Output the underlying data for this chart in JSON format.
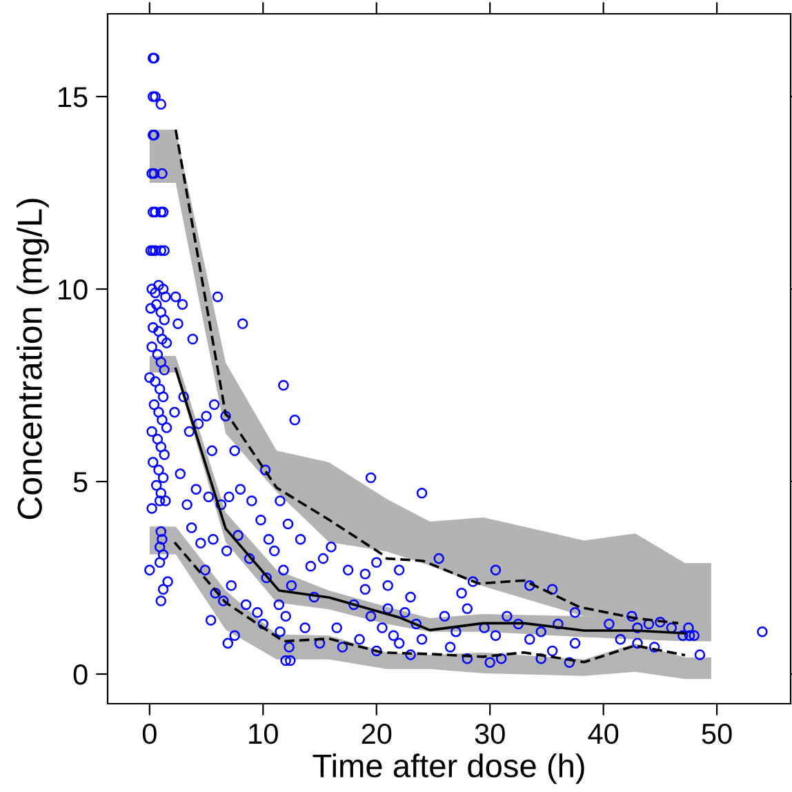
{
  "chart_data": {
    "type": "scatter",
    "xlabel": "Time after dose (h)",
    "ylabel": "Concentration (mg/L)",
    "xlim": [
      -3.7,
      56.5
    ],
    "ylim": [
      -0.77,
      17.15
    ],
    "xticks": [
      0,
      10,
      20,
      30,
      40,
      50
    ],
    "yticks": [
      0,
      5,
      10,
      15
    ],
    "series": [
      {
        "type": "area",
        "color": "#b3b3b3",
        "x": [
          0,
          2.3,
          6.7,
          11.2,
          15.8,
          20.9,
          24.7,
          29.4,
          38.3,
          42.8,
          47.2,
          49.5
        ],
        "values": [
          null,
          null,
          null,
          null,
          null,
          null,
          null,
          null,
          null,
          null,
          null,
          null
        ],
        "upper": [
          14.14,
          14.14,
          8.09,
          5.8,
          5.5,
          4.55,
          3.96,
          4.07,
          3.47,
          3.65,
          2.88,
          2.88
        ],
        "lower": [
          12.76,
          12.76,
          6.25,
          4.73,
          3.43,
          3.18,
          2.82,
          2.28,
          1.5,
          1.44,
          1.27,
          1.22
        ]
      },
      {
        "type": "area",
        "color": "#b2b2b2",
        "x": [
          0,
          2.3,
          6.7,
          11.2,
          15.8,
          20.9,
          24.7,
          29.4,
          38.3,
          42.8,
          47.2,
          49.5
        ],
        "values": [
          null,
          null,
          null,
          null,
          null,
          null,
          null,
          null,
          null,
          null,
          null,
          null
        ],
        "upper": [
          8.26,
          8.26,
          4.2,
          2.7,
          2.17,
          1.75,
          1.45,
          1.56,
          1.5,
          1.45,
          1.27,
          1.27
        ],
        "lower": [
          7.83,
          7.83,
          3.43,
          1.86,
          1.68,
          1.3,
          1.1,
          1.1,
          0.96,
          0.9,
          0.85,
          0.85
        ]
      },
      {
        "type": "area",
        "color": "#b4b4b4",
        "x": [
          0,
          2.3,
          6.7,
          11.2,
          15.8,
          20.9,
          24.7,
          29.4,
          38.3,
          42.8,
          47.2,
          49.5
        ],
        "values": [
          null,
          null,
          null,
          null,
          null,
          null,
          null,
          null,
          null,
          null,
          null,
          null
        ],
        "upper": [
          3.83,
          3.83,
          2.17,
          1.03,
          1.0,
          0.56,
          0.5,
          0.56,
          0.38,
          0.79,
          0.43,
          0.43
        ],
        "lower": [
          3.11,
          3.11,
          1.15,
          0.38,
          0.38,
          0.13,
          0.13,
          0.02,
          -0.05,
          0.06,
          -0.13,
          -0.13
        ]
      },
      {
        "color": "#0000ff",
        "marker": "circle",
        "x": [
          0.3,
          0.4,
          0.3,
          0.5,
          1.0,
          0.3,
          0.4,
          0.2,
          0.4,
          1.1,
          0.3,
          0.5,
          1.0,
          1.2,
          0.1,
          0.3,
          0.5,
          1.0,
          1.3,
          0.2,
          0.5,
          0.8,
          1.2,
          1.4,
          0.1,
          0.6,
          1.0,
          1.3,
          0.3,
          0.8,
          1.1,
          1.5,
          0.2,
          0.7,
          1.0,
          1.3,
          0.0,
          0.5,
          0.9,
          1.2,
          0.4,
          0.8,
          1.1,
          1.5,
          0.2,
          0.7,
          1.0,
          1.3,
          0.3,
          0.8,
          1.2,
          0.6,
          1.0,
          1.4,
          0.9,
          0.2,
          1.0,
          1.1,
          0.9,
          1.2,
          0.9,
          0.0,
          1.2,
          1.0,
          1.6,
          2.3,
          2.9,
          3.8,
          6.0,
          8.2,
          2.5,
          2.2,
          3.0,
          3.5,
          4.3,
          5.0,
          5.7,
          6.7,
          5.5,
          7.5,
          2.7,
          3.3,
          4.1,
          5.2,
          6.3,
          7.0,
          8.0,
          9.0,
          3.7,
          4.5,
          5.6,
          6.8,
          7.8,
          8.8,
          9.8,
          10.5,
          4.9,
          5.8,
          6.5,
          7.2,
          8.5,
          9.5,
          10.3,
          5.4,
          7.5,
          6.9,
          10.0,
          10.2,
          11.8,
          12.8,
          11.5,
          12.2,
          13.3,
          11.0,
          11.8,
          12.5,
          14.2,
          15.3,
          11.4,
          12.0,
          11.5,
          12.3,
          12.0,
          12.4,
          13.7,
          14.5,
          16.0,
          16.5,
          15.0,
          19.5,
          24.0,
          17.5,
          19.0,
          20.0,
          21.0,
          22.0,
          23.0,
          18.0,
          19.5,
          20.5,
          21.5,
          22.5,
          23.5,
          18.5,
          20.0,
          22.0,
          23.0,
          24.0,
          17.0,
          21.0,
          19.0,
          25.5,
          27.5,
          28.5,
          30.5,
          33.5,
          35.5,
          37.5,
          26.0,
          27.0,
          28.0,
          29.5,
          30.5,
          31.5,
          32.5,
          33.5,
          34.5,
          35.5,
          36.0,
          26.5,
          28.0,
          30.0,
          31.0,
          34.5,
          37.0,
          37.5,
          40.5,
          42.5,
          43.0,
          44.0,
          45.0,
          41.5,
          43.0,
          44.5,
          46.0,
          47.0,
          47.6,
          48.0,
          48.5,
          47.5,
          54.0
        ],
        "values": [
          16,
          16,
          15,
          15,
          14.8,
          14,
          14,
          13,
          13,
          13,
          12,
          12,
          12,
          12,
          11,
          11,
          11,
          11,
          11,
          10,
          9.9,
          10.1,
          10,
          9.8,
          9.5,
          9.6,
          9.4,
          9.2,
          9.0,
          8.9,
          8.7,
          8.6,
          8.5,
          8.3,
          8.1,
          7.9,
          7.7,
          7.6,
          7.4,
          7.2,
          7.0,
          6.8,
          6.6,
          6.4,
          6.3,
          6.1,
          5.9,
          5.7,
          5.5,
          5.3,
          5.1,
          4.9,
          4.7,
          4.5,
          4.5,
          4.3,
          3.7,
          3.5,
          3.3,
          3.1,
          2.9,
          2.7,
          2.2,
          1.9,
          2.4,
          9.8,
          9.6,
          8.7,
          9.8,
          9.1,
          9.1,
          6.8,
          7.2,
          6.3,
          6.5,
          6.7,
          7.0,
          6.7,
          5.8,
          5.8,
          5.2,
          4.4,
          4.8,
          4.6,
          4.4,
          4.6,
          4.8,
          4.5,
          3.8,
          3.4,
          3.5,
          3.2,
          3.6,
          3.0,
          4.0,
          3.5,
          2.7,
          2.1,
          1.9,
          2.3,
          1.8,
          1.6,
          2.5,
          1.4,
          1.0,
          0.8,
          1.3,
          5.3,
          7.5,
          6.6,
          4.5,
          3.9,
          3.5,
          3.2,
          2.7,
          2.3,
          2.8,
          3.0,
          1.8,
          1.5,
          1.1,
          0.7,
          0.35,
          0.35,
          1.2,
          2.0,
          3.3,
          1.2,
          0.8,
          5.1,
          4.7,
          2.7,
          2.6,
          2.9,
          2.3,
          2.7,
          2.0,
          1.8,
          1.5,
          1.2,
          1.0,
          1.6,
          1.3,
          0.9,
          0.6,
          0.8,
          0.5,
          0.9,
          0.7,
          1.7,
          2.2,
          3.0,
          2.1,
          2.4,
          2.7,
          2.3,
          2.2,
          1.6,
          1.5,
          1.1,
          1.7,
          1.2,
          1.0,
          1.5,
          1.3,
          0.9,
          1.1,
          0.6,
          1.3,
          0.7,
          0.4,
          0.3,
          0.4,
          0.4,
          0.3,
          0.8,
          1.3,
          1.5,
          1.2,
          1.3,
          1.35,
          0.9,
          0.8,
          0.7,
          1.2,
          1.0,
          1.0,
          1.0,
          0.5,
          1.2,
          1.1
        ]
      },
      {
        "type": "line",
        "color": "#000000",
        "line_style": "dashed",
        "x": [
          2.3,
          6.7,
          7.1,
          11.2,
          15.8,
          20.5,
          20.9,
          24.1,
          29.0,
          33.0,
          37.9,
          42.8,
          46.6
        ],
        "values": [
          14.14,
          6.75,
          6.64,
          4.84,
          4.01,
          3.11,
          3.0,
          2.94,
          2.35,
          2.43,
          1.74,
          1.45,
          1.32
        ]
      },
      {
        "type": "line",
        "color": "#000000",
        "line_style": "solid",
        "x": [
          2.3,
          6.7,
          11.4,
          15.8,
          22.1,
          24.7,
          29.4,
          33.0,
          38.3,
          42.8,
          47.2
        ],
        "values": [
          7.93,
          3.78,
          2.17,
          1.99,
          1.46,
          1.14,
          1.32,
          1.32,
          1.13,
          1.13,
          1.06
        ]
      },
      {
        "type": "line",
        "color": "#000000",
        "line_style": "dashed",
        "x": [
          2.2,
          6.7,
          11.8,
          15.8,
          20.5,
          24.7,
          29.4,
          33.0,
          38.3,
          42.8,
          47.2
        ],
        "values": [
          3.42,
          1.86,
          0.85,
          0.92,
          0.56,
          0.52,
          0.45,
          0.56,
          0.31,
          0.74,
          0.49
        ]
      }
    ]
  }
}
